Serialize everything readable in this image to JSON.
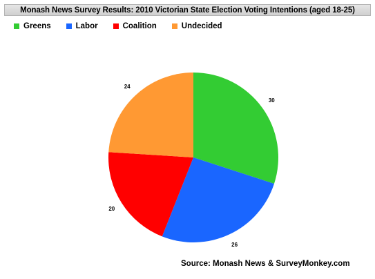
{
  "chart_data": {
    "type": "pie",
    "title": "Monash News Survey Results: 2010 Victorian State Election Voting Intentions (aged 18-25)",
    "categories": [
      "Greens",
      "Labor",
      "Coalition",
      "Undecided"
    ],
    "values": [
      30,
      26,
      20,
      24
    ],
    "colors": [
      "#33cc33",
      "#1a66ff",
      "#ff0000",
      "#ff9933"
    ],
    "legend_position": "top-left",
    "start_angle": "12 o'clock",
    "direction": "clockwise"
  },
  "legend": [
    {
      "label": "Greens",
      "color": "#33cc33"
    },
    {
      "label": "Labor",
      "color": "#1a66ff"
    },
    {
      "label": "Coalition",
      "color": "#ff0000"
    },
    {
      "label": "Undecided",
      "color": "#ff9933"
    }
  ],
  "source": "Source: Monash News & SurveyMonkey.com"
}
